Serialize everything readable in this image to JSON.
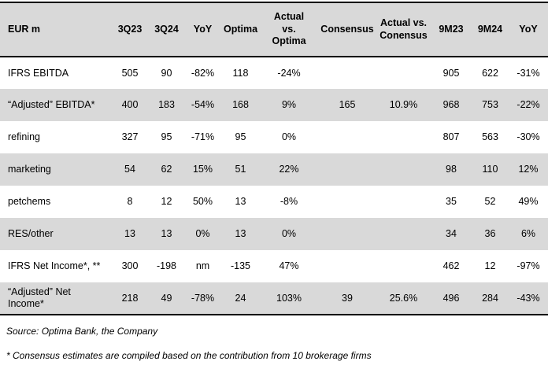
{
  "table": {
    "columns": [
      "EUR m",
      "3Q23",
      "3Q24",
      "YoY",
      "Optima",
      "Actual\nvs.\nOptima",
      "Consensus",
      "Actual vs.\nConensus",
      "9M23",
      "9M24",
      "YoY"
    ],
    "rows": [
      {
        "label": "IFRS EBITDA",
        "values": [
          "505",
          "90",
          "-82%",
          "118",
          "-24%",
          "",
          "",
          "905",
          "622",
          "-31%"
        ]
      },
      {
        "label": "“Adjusted” EBITDA*",
        "values": [
          "400",
          "183",
          "-54%",
          "168",
          "9%",
          "165",
          "10.9%",
          "968",
          "753",
          "-22%"
        ]
      },
      {
        "label": "refining",
        "values": [
          "327",
          "95",
          "-71%",
          "95",
          "0%",
          "",
          "",
          "807",
          "563",
          "-30%"
        ]
      },
      {
        "label": "marketing",
        "values": [
          "54",
          "62",
          "15%",
          "51",
          "22%",
          "",
          "",
          "98",
          "110",
          "12%"
        ]
      },
      {
        "label": "petchems",
        "values": [
          "8",
          "12",
          "50%",
          "13",
          "-8%",
          "",
          "",
          "35",
          "52",
          "49%"
        ]
      },
      {
        "label": "RES/other",
        "values": [
          "13",
          "13",
          "0%",
          "13",
          "0%",
          "",
          "",
          "34",
          "36",
          "6%"
        ]
      },
      {
        "label": "IFRS Net Income*, **",
        "values": [
          "300",
          "-198",
          "nm",
          "-135",
          "47%",
          "",
          "",
          "462",
          "12",
          "-97%"
        ]
      },
      {
        "label": "“Adjusted” Net Income*",
        "values": [
          "218",
          "49",
          "-78%",
          "24",
          "103%",
          "39",
          "25.6%",
          "496",
          "284",
          "-43%"
        ]
      }
    ]
  },
  "footer": {
    "source": "Source: Optima Bank, the Company",
    "footnote": "* Consensus estimates are compiled based on the contribution from 10 brokerage firms"
  },
  "colors": {
    "row_shade": "#d9d9d9",
    "border": "#000000",
    "background": "#ffffff",
    "text": "#000000"
  }
}
